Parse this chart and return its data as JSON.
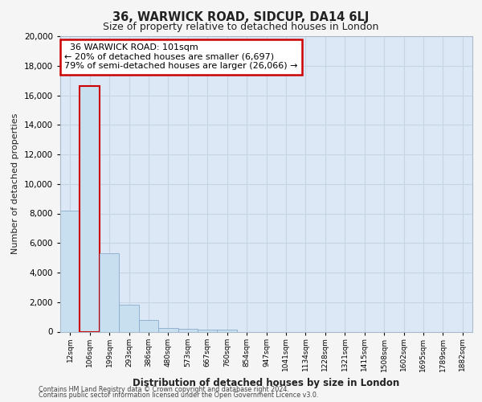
{
  "title_line1": "36, WARWICK ROAD, SIDCUP, DA14 6LJ",
  "title_line2": "Size of property relative to detached houses in London",
  "xlabel": "Distribution of detached houses by size in London",
  "ylabel": "Number of detached properties",
  "annotation_title": "36 WARWICK ROAD: 101sqm",
  "annotation_line1": "← 20% of detached houses are smaller (6,697)",
  "annotation_line2": "79% of semi-detached houses are larger (26,066) →",
  "footer_line1": "Contains HM Land Registry data © Crown copyright and database right 2024.",
  "footer_line2": "Contains public sector information licensed under the Open Government Licence v3.0.",
  "categories": [
    "12sqm",
    "106sqm",
    "199sqm",
    "293sqm",
    "386sqm",
    "480sqm",
    "573sqm",
    "667sqm",
    "760sqm",
    "854sqm",
    "947sqm",
    "1041sqm",
    "1134sqm",
    "1228sqm",
    "1321sqm",
    "1415sqm",
    "1508sqm",
    "1602sqm",
    "1695sqm",
    "1789sqm",
    "1882sqm"
  ],
  "values": [
    8200,
    16600,
    5300,
    1800,
    800,
    250,
    200,
    130,
    130,
    0,
    0,
    0,
    0,
    0,
    0,
    0,
    0,
    0,
    0,
    0,
    0
  ],
  "highlight_index": 1,
  "highlight_color": "#c8dff0",
  "highlight_border_color": "#cc0000",
  "normal_color": "#c8dff0",
  "normal_border_color": "#8aabcc",
  "annotation_box_color": "#ffffff",
  "annotation_box_border": "#cc0000",
  "ylim": [
    0,
    20000
  ],
  "yticks": [
    0,
    2000,
    4000,
    6000,
    8000,
    10000,
    12000,
    14000,
    16000,
    18000,
    20000
  ],
  "grid_color": "#c5d5e5",
  "bg_color": "#dce8f5",
  "fig_bg_color": "#f5f5f5",
  "property_index": 1
}
